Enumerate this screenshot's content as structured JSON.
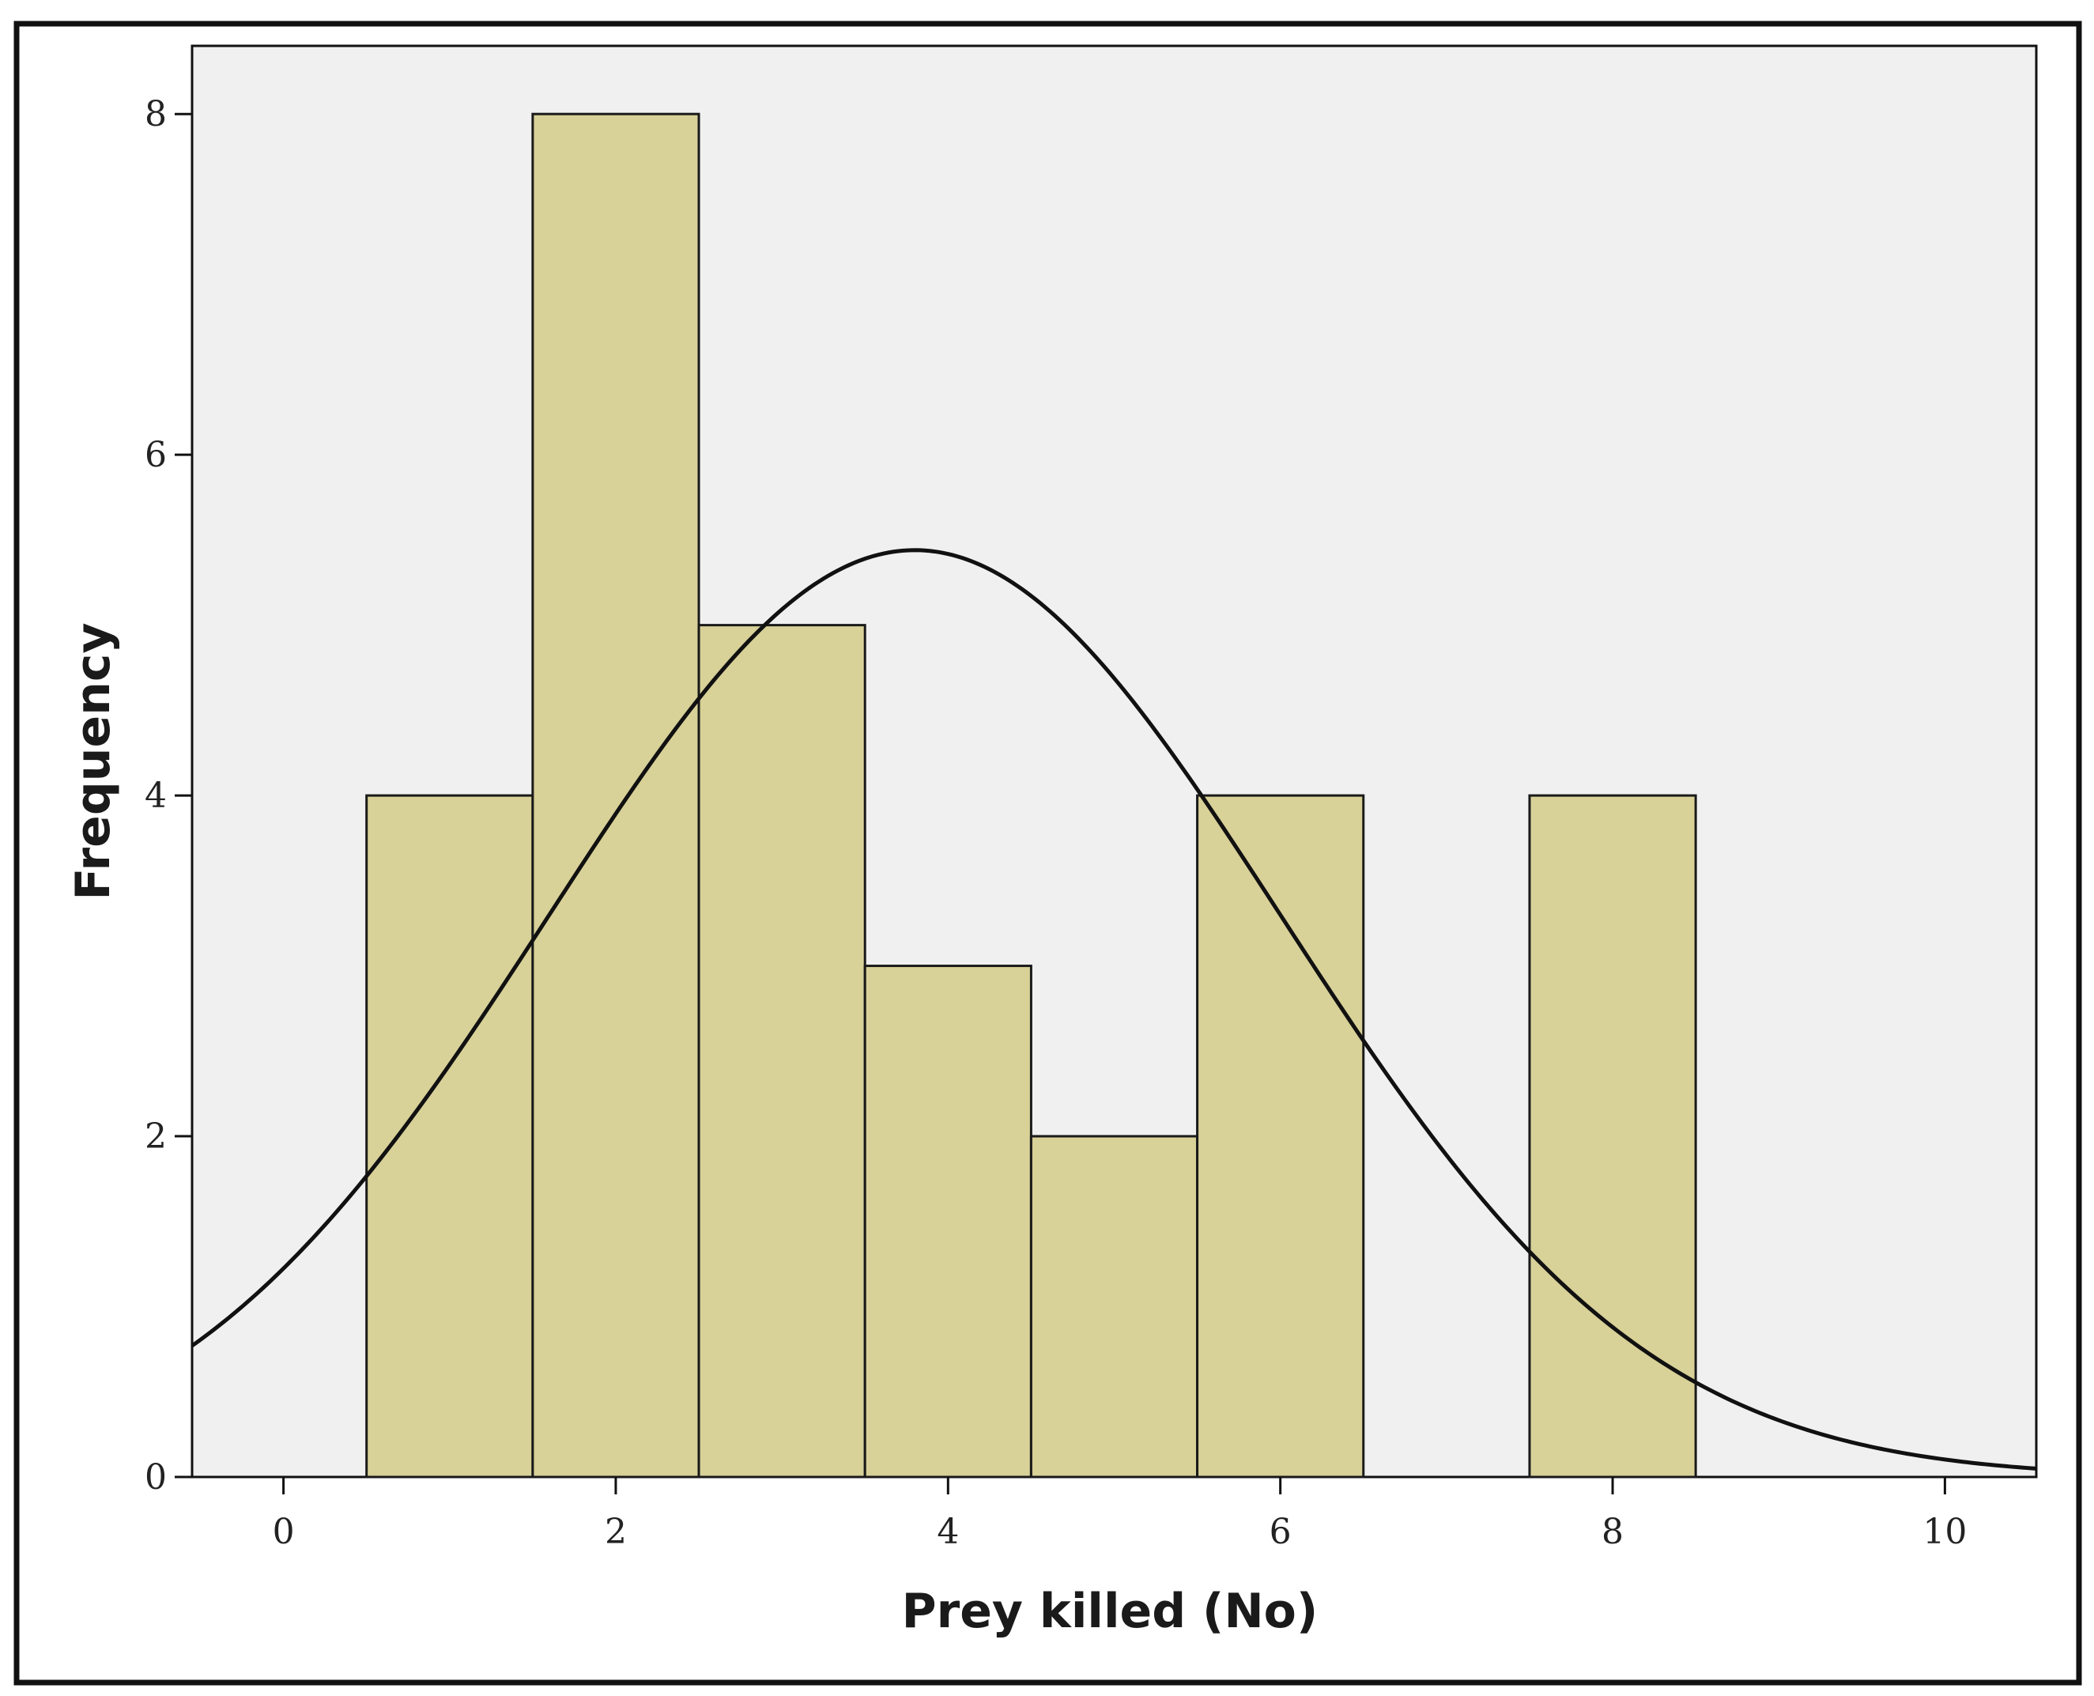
{
  "chart_data": {
    "type": "bar",
    "subtype": "histogram",
    "title": "",
    "xlabel": "Prey killed (No)",
    "ylabel": "Frequency",
    "xlim": [
      -0.55,
      10.55
    ],
    "ylim": [
      0,
      8.4
    ],
    "x_ticks": [
      0,
      2,
      4,
      6,
      8,
      10
    ],
    "y_ticks": [
      0,
      2,
      4,
      6,
      8
    ],
    "bins": [
      {
        "x0": 0.5,
        "x1": 1.5,
        "value": 4
      },
      {
        "x0": 1.5,
        "x1": 2.5,
        "value": 8
      },
      {
        "x0": 2.5,
        "x1": 3.5,
        "value": 5
      },
      {
        "x0": 3.5,
        "x1": 4.5,
        "value": 3
      },
      {
        "x0": 4.5,
        "x1": 5.5,
        "value": 2
      },
      {
        "x0": 5.5,
        "x1": 6.5,
        "value": 4
      },
      {
        "x0": 7.5,
        "x1": 8.5,
        "value": 4
      }
    ],
    "normal_curve": {
      "mean": 3.8,
      "sd": 2.2,
      "n": 30,
      "bin_width": 1
    },
    "grid": false,
    "legend": "none",
    "colors": {
      "bar_fill": "#d8d198",
      "bar_stroke": "#1a1a1a",
      "plot_background": "#f0f0f0",
      "curve": "#111111",
      "frame": "#111111"
    }
  }
}
